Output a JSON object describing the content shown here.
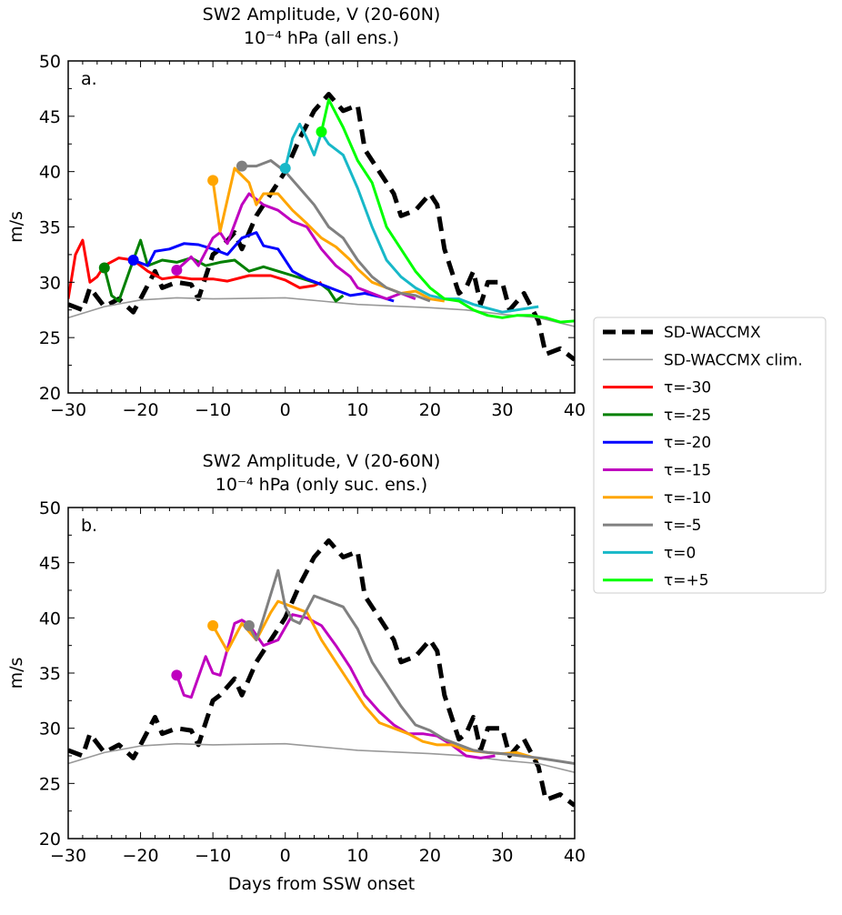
{
  "chart_data": [
    {
      "type": "line",
      "panel_label": "a.",
      "title": "SW2 Amplitude, V (20-60N)",
      "subtitle": "10⁻⁴ hPa (all ens.)",
      "xlabel": "",
      "ylabel": "m/s",
      "xlim": [
        -30,
        40
      ],
      "ylim": [
        20,
        50
      ],
      "xticks": [
        "−30",
        "−20",
        "−10",
        "0",
        "10",
        "20",
        "30",
        "40"
      ],
      "yticks": [
        "20",
        "25",
        "30",
        "35",
        "40",
        "45",
        "50"
      ],
      "series": [
        {
          "name": "SD-WACCMX",
          "color": "#000000",
          "style": "dashed",
          "x": [
            -30,
            -28,
            -27,
            -25,
            -23,
            -21,
            -20,
            -18,
            -17,
            -15,
            -13,
            -12,
            -10,
            -9,
            -7,
            -6,
            -4,
            -2,
            0,
            2,
            4,
            6,
            8,
            10,
            11,
            13,
            15,
            16,
            18,
            20,
            21,
            22,
            24,
            25,
            26,
            27,
            28,
            30,
            31,
            33,
            35,
            36,
            38,
            40
          ],
          "y": [
            28,
            27.5,
            29.5,
            27.8,
            28.5,
            27.3,
            28.5,
            31,
            29.5,
            30,
            29.8,
            28.5,
            32.5,
            33,
            34.5,
            33,
            36,
            38,
            40,
            43,
            45.5,
            47,
            45.5,
            46,
            42,
            40,
            38,
            36,
            36.5,
            38,
            37,
            33,
            29,
            29.5,
            31,
            28,
            30,
            30,
            27.5,
            29,
            26.5,
            23.5,
            24,
            23
          ]
        },
        {
          "name": "SD-WACCMX clim.",
          "color": "#999999",
          "style": "thin",
          "x": [
            -30,
            -25,
            -20,
            -15,
            -10,
            0,
            5,
            10,
            20,
            25,
            30,
            35,
            40
          ],
          "y": [
            26.8,
            27.8,
            28.4,
            28.6,
            28.5,
            28.6,
            28.3,
            28,
            27.7,
            27.5,
            27.1,
            26.8,
            26
          ]
        },
        {
          "name": "τ=-30",
          "color": "#ff0000",
          "marker": false,
          "x": [
            -30,
            -29,
            -28,
            -27,
            -26,
            -25,
            -23,
            -21,
            -19,
            -17,
            -15,
            -13,
            -10,
            -8,
            -5,
            -2,
            0,
            2,
            4,
            5
          ],
          "y": [
            28.5,
            32.5,
            33.8,
            30,
            30.5,
            31.5,
            32.2,
            32,
            31,
            30.3,
            30.5,
            30.3,
            30.3,
            30.1,
            30.6,
            30.6,
            30.2,
            29.5,
            29.7,
            30
          ]
        },
        {
          "name": "τ=-25",
          "color": "#008000",
          "marker": true,
          "x": [
            -25,
            -24,
            -23,
            -21,
            -20,
            -19,
            -17,
            -15,
            -13,
            -11,
            -9,
            -7,
            -5,
            -3,
            -1,
            1,
            3,
            5,
            6,
            7,
            8
          ],
          "y": [
            31.3,
            28.8,
            28.3,
            32,
            33.8,
            31.5,
            32,
            31.8,
            32.2,
            31.5,
            31.8,
            32,
            31,
            31.4,
            31,
            30.6,
            30.2,
            29.8,
            29.3,
            28.3,
            28.8
          ]
        },
        {
          "name": "τ=-20",
          "color": "#0000ff",
          "marker": true,
          "x": [
            -21,
            -19,
            -18,
            -16,
            -14,
            -12,
            -10,
            -8,
            -6,
            -4,
            -3,
            -1,
            1,
            3,
            5,
            7,
            9,
            11,
            13,
            15
          ],
          "y": [
            32,
            31.5,
            32.8,
            33,
            33.5,
            33.4,
            33,
            32.5,
            34,
            34.5,
            33.3,
            33,
            31,
            30.3,
            29.8,
            29.3,
            28.8,
            29,
            28.7,
            28.3
          ]
        },
        {
          "name": "τ=-15",
          "color": "#bf00bf",
          "marker": true,
          "x": [
            -15,
            -13,
            -12,
            -10,
            -9,
            -8,
            -6,
            -5,
            -3,
            -1,
            1,
            3,
            5,
            7,
            9,
            10,
            12,
            14,
            16,
            18
          ],
          "y": [
            31.1,
            32.3,
            31.5,
            34,
            34.5,
            33.5,
            37,
            38,
            37,
            36.5,
            35.5,
            35,
            33,
            31.5,
            30.5,
            29.5,
            29,
            28.5,
            29,
            28.5
          ]
        },
        {
          "name": "τ=-10",
          "color": "#ffa500",
          "marker": true,
          "x": [
            -10,
            -9,
            -7,
            -5,
            -4,
            -3,
            -1,
            1,
            3,
            5,
            7,
            9,
            10,
            12,
            14,
            16,
            18,
            20,
            22
          ],
          "y": [
            39.2,
            34.6,
            40.3,
            39,
            37,
            38,
            38,
            36.5,
            35.3,
            34,
            33.2,
            32,
            31.2,
            30,
            29.5,
            29,
            29.2,
            28.5,
            28.3
          ]
        },
        {
          "name": "τ=-5",
          "color": "#808080",
          "marker": true,
          "x": [
            -6,
            -4,
            -2,
            0,
            2,
            4,
            6,
            8,
            10,
            12,
            14,
            16,
            18,
            20
          ],
          "y": [
            40.5,
            40.5,
            41,
            40,
            38.5,
            37,
            35,
            34,
            32,
            30.5,
            29.5,
            29,
            28.8,
            28.3
          ]
        },
        {
          "name": "τ=0",
          "color": "#17b8c8",
          "marker": true,
          "x": [
            0,
            1,
            2,
            3,
            4,
            5,
            6,
            8,
            10,
            12,
            14,
            16,
            18,
            20,
            22,
            24,
            26,
            30,
            35
          ],
          "y": [
            40.3,
            43,
            44.3,
            43,
            41.5,
            43.5,
            42.5,
            41.5,
            38.5,
            35,
            32,
            30.5,
            29.5,
            28.8,
            28.5,
            28.5,
            28,
            27.3,
            27.8
          ]
        },
        {
          "name": "τ=+5",
          "color": "#00ff00",
          "marker": true,
          "x": [
            5,
            6,
            8,
            10,
            12,
            14,
            16,
            18,
            20,
            22,
            24,
            26,
            28,
            30,
            32,
            34,
            36,
            38,
            40
          ],
          "y": [
            43.6,
            46.5,
            44,
            41,
            39,
            35,
            33,
            31,
            29.5,
            28.5,
            28.3,
            27.5,
            27,
            26.8,
            27,
            27,
            26.8,
            26.4,
            26.5
          ]
        }
      ]
    },
    {
      "type": "line",
      "panel_label": "b.",
      "title": "SW2 Amplitude, V (20-60N)",
      "subtitle": "10⁻⁴ hPa (only suc. ens.)",
      "xlabel": "Days from SSW onset",
      "ylabel": "m/s",
      "xlim": [
        -30,
        40
      ],
      "ylim": [
        20,
        50
      ],
      "xticks": [
        "−30",
        "−20",
        "−10",
        "0",
        "10",
        "20",
        "30",
        "40"
      ],
      "yticks": [
        "20",
        "25",
        "30",
        "35",
        "40",
        "45",
        "50"
      ],
      "series": [
        {
          "name": "SD-WACCMX",
          "color": "#000000",
          "style": "dashed",
          "x": [
            -30,
            -28,
            -27,
            -25,
            -23,
            -21,
            -20,
            -18,
            -17,
            -15,
            -13,
            -12,
            -10,
            -9,
            -7,
            -6,
            -4,
            -2,
            0,
            2,
            4,
            6,
            8,
            10,
            11,
            13,
            15,
            16,
            18,
            20,
            21,
            22,
            24,
            25,
            26,
            27,
            28,
            30,
            31,
            33,
            35,
            36,
            38,
            40
          ],
          "y": [
            28,
            27.5,
            29.5,
            27.8,
            28.5,
            27.3,
            28.5,
            31,
            29.5,
            30,
            29.8,
            28.5,
            32.5,
            33,
            34.5,
            33,
            36,
            38,
            40,
            43,
            45.5,
            47,
            45.5,
            46,
            42,
            40,
            38,
            36,
            36.5,
            38,
            37,
            33,
            29,
            29.5,
            31,
            28,
            30,
            30,
            27.5,
            29,
            26.5,
            23.5,
            24,
            23
          ]
        },
        {
          "name": "SD-WACCMX clim.",
          "color": "#999999",
          "style": "thin",
          "x": [
            -30,
            -25,
            -20,
            -15,
            -10,
            0,
            5,
            10,
            20,
            25,
            30,
            35,
            40
          ],
          "y": [
            26.8,
            27.8,
            28.4,
            28.6,
            28.5,
            28.6,
            28.3,
            28,
            27.7,
            27.5,
            27.1,
            26.8,
            26
          ]
        },
        {
          "name": "τ=-15",
          "color": "#bf00bf",
          "marker": true,
          "x": [
            -15,
            -14,
            -13,
            -11,
            -10,
            -9,
            -7,
            -6,
            -5,
            -3,
            -1,
            1,
            3,
            5,
            7,
            9,
            11,
            13,
            15,
            17,
            19,
            21,
            23,
            25,
            27,
            29
          ],
          "y": [
            34.8,
            33,
            32.8,
            36.5,
            35,
            34.8,
            39.5,
            39.8,
            39.4,
            37.5,
            38,
            40.3,
            40,
            39.3,
            37.5,
            35.5,
            33,
            31.5,
            30.3,
            29.5,
            29.5,
            29.3,
            28.5,
            27.5,
            27.3,
            27.5
          ]
        },
        {
          "name": "τ=-10",
          "color": "#ffa500",
          "marker": true,
          "x": [
            -10,
            -8,
            -6,
            -4,
            -2,
            -1,
            1,
            3,
            5,
            7,
            9,
            11,
            13,
            15,
            17,
            19,
            21,
            23,
            25,
            28,
            30,
            32,
            35
          ],
          "y": [
            39.3,
            37,
            39.5,
            38,
            40.5,
            41.5,
            41,
            40.5,
            38,
            36,
            34,
            32,
            30.5,
            30,
            29.5,
            28.8,
            28.5,
            28.5,
            28,
            27.8,
            27.7,
            27.8,
            27.2
          ]
        },
        {
          "name": "τ=-5",
          "color": "#808080",
          "marker": true,
          "x": [
            -5,
            -4,
            -3,
            -1,
            0,
            1,
            2,
            4,
            6,
            8,
            10,
            12,
            14,
            16,
            18,
            20,
            22,
            24,
            26,
            28,
            30,
            35,
            40
          ],
          "y": [
            39.3,
            38,
            40,
            44.3,
            41,
            39.8,
            39.5,
            42,
            41.5,
            41,
            39,
            36,
            34,
            32,
            30.3,
            29.8,
            29,
            28.5,
            28,
            27.8,
            27.7,
            27.3,
            26.8
          ]
        }
      ]
    }
  ],
  "legend": {
    "placement": "right",
    "entries": [
      {
        "label": "SD-WACCMX",
        "color": "#000000",
        "style": "dashed"
      },
      {
        "label": "SD-WACCMX clim.",
        "color": "#999999",
        "style": "thin"
      },
      {
        "label": "τ=-30",
        "color": "#ff0000"
      },
      {
        "label": "τ=-25",
        "color": "#008000"
      },
      {
        "label": "τ=-20",
        "color": "#0000ff"
      },
      {
        "label": "τ=-15",
        "color": "#bf00bf"
      },
      {
        "label": "τ=-10",
        "color": "#ffa500"
      },
      {
        "label": "τ=-5",
        "color": "#808080"
      },
      {
        "label": "τ=0",
        "color": "#17b8c8"
      },
      {
        "label": "τ=+5",
        "color": "#00ff00"
      }
    ]
  }
}
